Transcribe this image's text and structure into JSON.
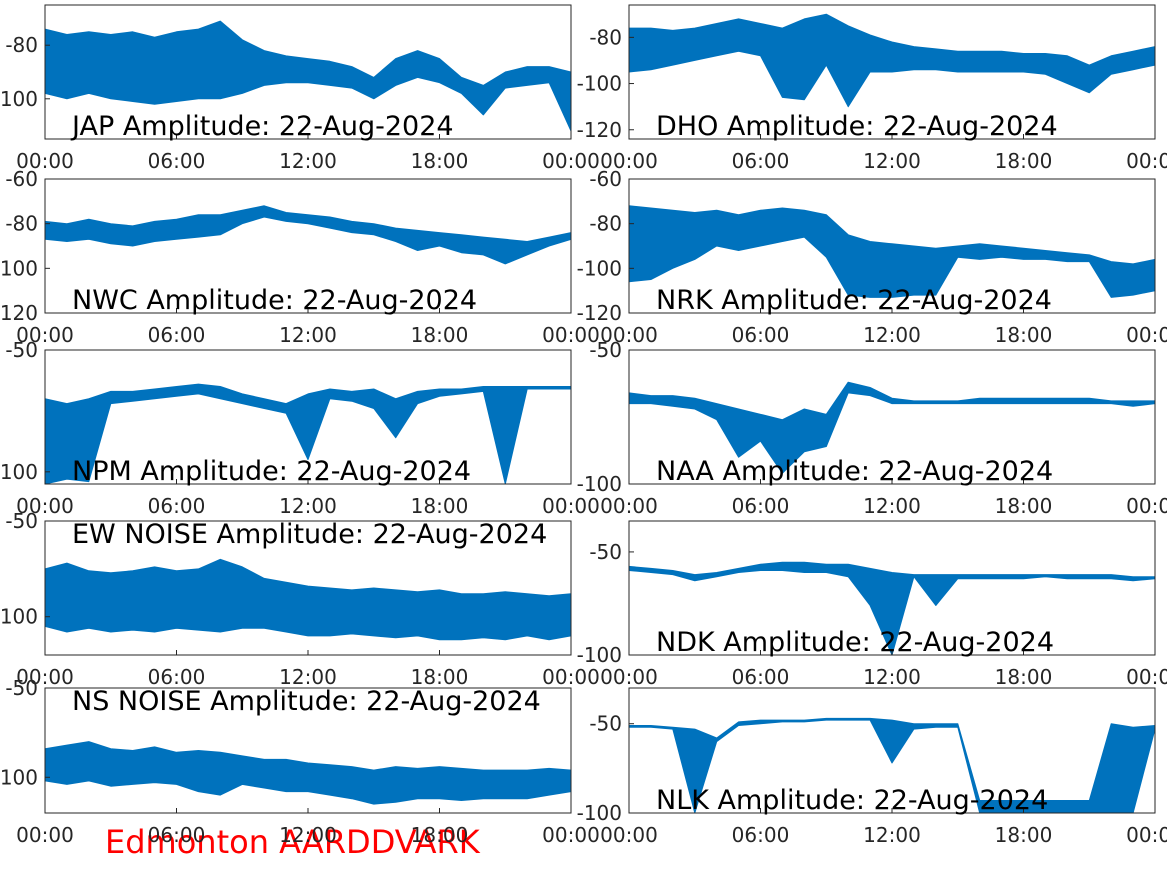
{
  "chart_data": [
    {
      "type": "band",
      "title": "JAP Amplitude: 22-Aug-2024",
      "color": "#0072bd",
      "x": [
        0,
        1,
        2,
        3,
        4,
        5,
        6,
        7,
        8,
        9,
        10,
        11,
        12,
        13,
        14,
        15,
        16,
        17,
        18,
        19,
        20,
        21,
        22,
        23,
        24
      ],
      "upper": [
        -74,
        -76,
        -75,
        -76,
        -75,
        -77,
        -75,
        -74,
        -71,
        -78,
        -82,
        -84,
        -85,
        -86,
        -88,
        -92,
        -85,
        -82,
        -85,
        -92,
        -95,
        -90,
        -88,
        -88,
        -90
      ],
      "lower": [
        -98,
        -100,
        -98,
        -100,
        -101,
        -102,
        -101,
        -100,
        -100,
        -98,
        -95,
        -94,
        -94,
        -95,
        -96,
        -100,
        -95,
        -92,
        -94,
        -98,
        -106,
        -96,
        -95,
        -94,
        -112
      ],
      "xlim": [
        0,
        24
      ],
      "xticks": [
        {
          "value": 0,
          "label": "00:00"
        },
        {
          "value": 6,
          "label": "06:00"
        },
        {
          "value": 12,
          "label": "12:00"
        },
        {
          "value": 18,
          "label": "18:00"
        },
        {
          "value": 24,
          "label": "00:00"
        }
      ],
      "ylim": [
        -115,
        -65
      ],
      "yticks": [
        -100,
        -80
      ]
    },
    {
      "type": "band",
      "title": "DHO Amplitude: 22-Aug-2024",
      "color": "#0072bd",
      "x": [
        0,
        1,
        2,
        3,
        4,
        5,
        6,
        7,
        8,
        9,
        10,
        11,
        12,
        13,
        14,
        15,
        16,
        17,
        18,
        19,
        20,
        21,
        22,
        23,
        24
      ],
      "upper": [
        -76,
        -76,
        -77,
        -76,
        -74,
        -72,
        -74,
        -76,
        -72,
        -70,
        -75,
        -79,
        -82,
        -84,
        -85,
        -86,
        -86,
        -86,
        -87,
        -87,
        -88,
        -92,
        -88,
        -86,
        -84
      ],
      "lower": [
        -95,
        -94,
        -92,
        -90,
        -88,
        -86,
        -88,
        -106,
        -107,
        -92,
        -110,
        -95,
        -95,
        -94,
        -94,
        -95,
        -95,
        -95,
        -95,
        -96,
        -100,
        -104,
        -96,
        -94,
        -92
      ],
      "xlim": [
        0,
        24
      ],
      "xticks": [
        {
          "value": 0,
          "label": "00:00"
        },
        {
          "value": 6,
          "label": "06:00"
        },
        {
          "value": 12,
          "label": "12:00"
        },
        {
          "value": 18,
          "label": "18:00"
        },
        {
          "value": 24,
          "label": "00:00"
        }
      ],
      "ylim": [
        -124,
        -66
      ],
      "yticks": [
        -120,
        -100,
        -80
      ]
    },
    {
      "type": "band",
      "title": "NWC Amplitude: 22-Aug-2024",
      "color": "#0072bd",
      "x": [
        0,
        1,
        2,
        3,
        4,
        5,
        6,
        7,
        8,
        9,
        10,
        11,
        12,
        13,
        14,
        15,
        16,
        17,
        18,
        19,
        20,
        21,
        22,
        23,
        24
      ],
      "upper": [
        -79,
        -80,
        -78,
        -80,
        -81,
        -79,
        -78,
        -76,
        -76,
        -74,
        -72,
        -75,
        -76,
        -77,
        -79,
        -80,
        -82,
        -83,
        -84,
        -85,
        -86,
        -87,
        -88,
        -86,
        -84
      ],
      "lower": [
        -87,
        -88,
        -87,
        -89,
        -90,
        -88,
        -87,
        -86,
        -85,
        -80,
        -77,
        -79,
        -80,
        -82,
        -84,
        -85,
        -88,
        -92,
        -90,
        -93,
        -94,
        -98,
        -94,
        -90,
        -87
      ],
      "xlim": [
        0,
        24
      ],
      "xticks": [
        {
          "value": 0,
          "label": "00:00"
        },
        {
          "value": 6,
          "label": "06:00"
        },
        {
          "value": 12,
          "label": "12:00"
        },
        {
          "value": 18,
          "label": "18:00"
        },
        {
          "value": 24,
          "label": "00:00"
        }
      ],
      "ylim": [
        -120,
        -60
      ],
      "yticks": [
        -120,
        -100,
        -80,
        -60
      ]
    },
    {
      "type": "band",
      "title": "NRK Amplitude: 22-Aug-2024",
      "color": "#0072bd",
      "x": [
        0,
        1,
        2,
        3,
        4,
        5,
        6,
        7,
        8,
        9,
        10,
        11,
        12,
        13,
        14,
        15,
        16,
        17,
        18,
        19,
        20,
        21,
        22,
        23,
        24
      ],
      "upper": [
        -72,
        -73,
        -74,
        -75,
        -74,
        -76,
        -74,
        -73,
        -74,
        -76,
        -85,
        -88,
        -89,
        -90,
        -91,
        -90,
        -89,
        -90,
        -91,
        -92,
        -93,
        -94,
        -97,
        -98,
        -96
      ],
      "lower": [
        -106,
        -105,
        -100,
        -96,
        -90,
        -92,
        -90,
        -88,
        -86,
        -95,
        -112,
        -113,
        -113,
        -112,
        -112,
        -95,
        -96,
        -95,
        -96,
        -96,
        -97,
        -97,
        -113,
        -112,
        -110
      ],
      "xlim": [
        0,
        24
      ],
      "xticks": [
        {
          "value": 0,
          "label": "00:00"
        },
        {
          "value": 6,
          "label": "06:00"
        },
        {
          "value": 12,
          "label": "12:00"
        },
        {
          "value": 18,
          "label": "18:00"
        },
        {
          "value": 24,
          "label": "00:00"
        }
      ],
      "ylim": [
        -120,
        -60
      ],
      "yticks": [
        -120,
        -100,
        -80,
        -60
      ]
    },
    {
      "type": "band",
      "title": "NPM Amplitude: 22-Aug-2024",
      "color": "#0072bd",
      "x": [
        0,
        1,
        2,
        3,
        4,
        5,
        6,
        7,
        8,
        9,
        10,
        11,
        12,
        13,
        14,
        15,
        16,
        17,
        18,
        19,
        20,
        21,
        22,
        23,
        24
      ],
      "upper": [
        -70,
        -72,
        -70,
        -67,
        -67,
        -66,
        -65,
        -64,
        -65,
        -68,
        -70,
        -72,
        -68,
        -66,
        -67,
        -66,
        -70,
        -67,
        -66,
        -66,
        -65,
        -65,
        -65,
        -65,
        -65
      ],
      "lower": [
        -105,
        -103,
        -104,
        -72,
        -71,
        -70,
        -69,
        -68,
        -70,
        -72,
        -74,
        -76,
        -95,
        -70,
        -71,
        -74,
        -86,
        -72,
        -69,
        -68,
        -67,
        -105,
        -66,
        -66,
        -66
      ],
      "xlim": [
        0,
        24
      ],
      "xticks": [
        {
          "value": 0,
          "label": "00:00"
        },
        {
          "value": 6,
          "label": "06:00"
        },
        {
          "value": 12,
          "label": "12:00"
        },
        {
          "value": 18,
          "label": "18:00"
        },
        {
          "value": 24,
          "label": "00:00"
        }
      ],
      "ylim": [
        -105,
        -50
      ],
      "yticks": [
        -100,
        -50
      ]
    },
    {
      "type": "band",
      "title": "NAA Amplitude: 22-Aug-2024",
      "color": "#0072bd",
      "x": [
        0,
        1,
        2,
        3,
        4,
        5,
        6,
        7,
        8,
        9,
        10,
        11,
        12,
        13,
        14,
        15,
        16,
        17,
        18,
        19,
        20,
        21,
        22,
        23,
        24
      ],
      "upper": [
        -66,
        -67,
        -67,
        -68,
        -70,
        -72,
        -74,
        -76,
        -72,
        -74,
        -62,
        -64,
        -68,
        -69,
        -69,
        -69,
        -68,
        -68,
        -68,
        -68,
        -68,
        -68,
        -69,
        -69,
        -69
      ],
      "lower": [
        -70,
        -70,
        -71,
        -72,
        -76,
        -90,
        -84,
        -96,
        -88,
        -86,
        -66,
        -67,
        -70,
        -70,
        -70,
        -70,
        -70,
        -70,
        -70,
        -70,
        -70,
        -70,
        -70,
        -71,
        -70
      ],
      "xlim": [
        0,
        24
      ],
      "xticks": [
        {
          "value": 0,
          "label": "00:00"
        },
        {
          "value": 6,
          "label": "06:00"
        },
        {
          "value": 12,
          "label": "12:00"
        },
        {
          "value": 18,
          "label": "18:00"
        },
        {
          "value": 24,
          "label": "00:00"
        }
      ],
      "ylim": [
        -100,
        -50
      ],
      "yticks": [
        -100,
        -50
      ]
    },
    {
      "type": "band",
      "title": "EW NOISE Amplitude: 22-Aug-2024",
      "color": "#0072bd",
      "x": [
        0,
        1,
        2,
        3,
        4,
        5,
        6,
        7,
        8,
        9,
        10,
        11,
        12,
        13,
        14,
        15,
        16,
        17,
        18,
        19,
        20,
        21,
        22,
        23,
        24
      ],
      "upper": [
        -75,
        -72,
        -76,
        -77,
        -76,
        -74,
        -76,
        -75,
        -70,
        -74,
        -80,
        -82,
        -84,
        -85,
        -86,
        -85,
        -86,
        -87,
        -86,
        -88,
        -88,
        -87,
        -88,
        -89,
        -88
      ],
      "lower": [
        -105,
        -108,
        -106,
        -108,
        -107,
        -108,
        -106,
        -107,
        -108,
        -106,
        -106,
        -108,
        -110,
        -110,
        -109,
        -110,
        -111,
        -110,
        -112,
        -112,
        -111,
        -112,
        -110,
        -112,
        -110
      ],
      "xlim": [
        0,
        24
      ],
      "xticks": [
        {
          "value": 0,
          "label": "00:00"
        },
        {
          "value": 6,
          "label": "06:00"
        },
        {
          "value": 12,
          "label": "12:00"
        },
        {
          "value": 18,
          "label": "18:00"
        },
        {
          "value": 24,
          "label": "00:00"
        }
      ],
      "ylim": [
        -120,
        -50
      ],
      "yticks": [
        -100,
        -50
      ]
    },
    {
      "type": "band",
      "title": "NDK Amplitude: 22-Aug-2024",
      "color": "#0072bd",
      "x": [
        0,
        1,
        2,
        3,
        4,
        5,
        6,
        7,
        8,
        9,
        10,
        11,
        12,
        13,
        14,
        15,
        16,
        17,
        18,
        19,
        20,
        21,
        22,
        23,
        24
      ],
      "upper": [
        -57,
        -58,
        -59,
        -61,
        -60,
        -58,
        -56,
        -55,
        -55,
        -56,
        -56,
        -58,
        -60,
        -61,
        -61,
        -61,
        -61,
        -61,
        -61,
        -61,
        -61,
        -61,
        -61,
        -62,
        -62
      ],
      "lower": [
        -59,
        -60,
        -61,
        -64,
        -62,
        -60,
        -59,
        -59,
        -60,
        -60,
        -62,
        -76,
        -100,
        -62,
        -76,
        -63,
        -63,
        -63,
        -63,
        -62,
        -63,
        -63,
        -63,
        -64,
        -63
      ],
      "xlim": [
        0,
        24
      ],
      "xticks": [
        {
          "value": 0,
          "label": "00:00"
        },
        {
          "value": 6,
          "label": "06:00"
        },
        {
          "value": 12,
          "label": "12:00"
        },
        {
          "value": 18,
          "label": "18:00"
        },
        {
          "value": 24,
          "label": "00:00"
        }
      ],
      "ylim": [
        -100,
        -35
      ],
      "yticks": [
        -100,
        -50
      ]
    },
    {
      "type": "band",
      "title": "NS NOISE Amplitude: 22-Aug-2024",
      "color": "#0072bd",
      "x": [
        0,
        1,
        2,
        3,
        4,
        5,
        6,
        7,
        8,
        9,
        10,
        11,
        12,
        13,
        14,
        15,
        16,
        17,
        18,
        19,
        20,
        21,
        22,
        23,
        24
      ],
      "upper": [
        -84,
        -82,
        -80,
        -84,
        -85,
        -83,
        -86,
        -85,
        -86,
        -88,
        -90,
        -90,
        -92,
        -93,
        -94,
        -96,
        -94,
        -95,
        -94,
        -95,
        -96,
        -96,
        -96,
        -95,
        -96
      ],
      "lower": [
        -102,
        -104,
        -102,
        -105,
        -104,
        -103,
        -104,
        -108,
        -110,
        -104,
        -106,
        -108,
        -108,
        -110,
        -112,
        -115,
        -114,
        -112,
        -112,
        -113,
        -112,
        -112,
        -112,
        -110,
        -108
      ],
      "xlim": [
        0,
        24
      ],
      "xticks": [
        {
          "value": 0,
          "label": "00:00"
        },
        {
          "value": 6,
          "label": "06:00"
        },
        {
          "value": 12,
          "label": "12:00"
        },
        {
          "value": 18,
          "label": "18:00"
        },
        {
          "value": 24,
          "label": "00:00"
        }
      ],
      "ylim": [
        -120,
        -50
      ],
      "yticks": [
        -100,
        -50
      ]
    },
    {
      "type": "band",
      "title": "NLK Amplitude: 22-Aug-2024",
      "color": "#0072bd",
      "x": [
        0,
        1,
        2,
        3,
        4,
        5,
        6,
        7,
        8,
        9,
        10,
        11,
        12,
        13,
        14,
        15,
        16,
        17,
        18,
        19,
        20,
        21,
        22,
        23,
        24
      ],
      "upper": [
        -51,
        -51,
        -52,
        -53,
        -58,
        -49,
        -48,
        -48,
        -48,
        -47,
        -47,
        -47,
        -48,
        -50,
        -50,
        -50,
        -93,
        -93,
        -93,
        -93,
        -93,
        -93,
        -50,
        -52,
        -51
      ],
      "lower": [
        -52,
        -52,
        -53,
        -100,
        -60,
        -51,
        -50,
        -49,
        -49,
        -48,
        -48,
        -48,
        -72,
        -53,
        -52,
        -52,
        -100,
        -100,
        -100,
        -100,
        -100,
        -100,
        -100,
        -100,
        -53
      ],
      "xlim": [
        0,
        24
      ],
      "xticks": [
        {
          "value": 0,
          "label": "00:00"
        },
        {
          "value": 6,
          "label": "06:00"
        },
        {
          "value": 12,
          "label": "12:00"
        },
        {
          "value": 18,
          "label": "18:00"
        },
        {
          "value": 24,
          "label": "00:00"
        }
      ],
      "ylim": [
        -100,
        -30
      ],
      "yticks": [
        -100,
        -50
      ]
    }
  ],
  "footer": "Edmonton AARDDVARK"
}
